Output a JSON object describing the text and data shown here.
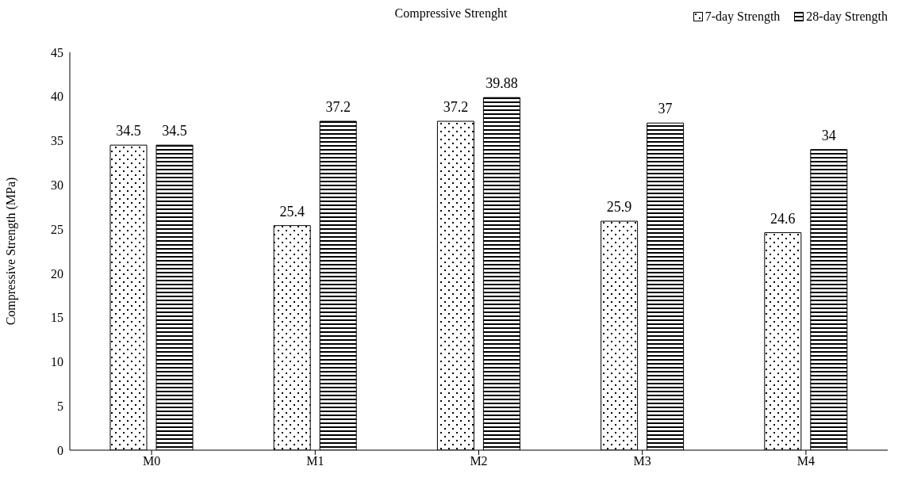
{
  "chart_data": {
    "type": "bar",
    "title": "Compressive Strenght",
    "ylabel": "Compressive Strength (MPa)",
    "categories": [
      "M0",
      "M1",
      "M2",
      "M3",
      "M4"
    ],
    "series": [
      {
        "name": "7-day Strength",
        "color": "#000000",
        "values": [
          34.5,
          25.4,
          37.2,
          25.9,
          24.6
        ]
      },
      {
        "name": "28-day Strength",
        "color": "#000000",
        "values": [
          34.5,
          37.2,
          39.88,
          37,
          34
        ]
      }
    ],
    "ylim": [
      0,
      45
    ],
    "yticks": [
      0,
      5,
      10,
      15,
      20,
      25,
      30,
      35,
      40,
      45
    ],
    "grid": false,
    "legend": "top right",
    "data_labels": true
  }
}
